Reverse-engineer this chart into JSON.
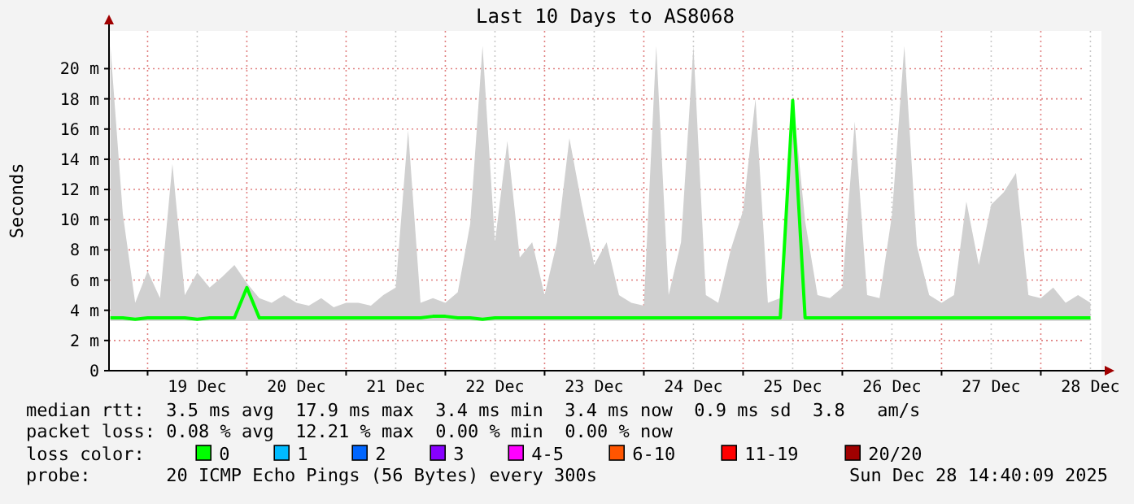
{
  "chart_data": {
    "type": "line",
    "title": "Last 10 Days to AS8068",
    "ylabel": "Seconds",
    "xlim": [
      "2025-12-18T14:40",
      "2025-12-28T14:40"
    ],
    "xticks": [
      {
        "value": "2025-12-19T00:00",
        "label": null
      },
      {
        "value": "2025-12-19T12:00",
        "label": "19 Dec"
      },
      {
        "value": "2025-12-20T00:00",
        "label": null
      },
      {
        "value": "2025-12-20T12:00",
        "label": "20 Dec"
      },
      {
        "value": "2025-12-21T00:00",
        "label": null
      },
      {
        "value": "2025-12-21T12:00",
        "label": "21 Dec"
      },
      {
        "value": "2025-12-22T00:00",
        "label": null
      },
      {
        "value": "2025-12-22T12:00",
        "label": "22 Dec"
      },
      {
        "value": "2025-12-23T00:00",
        "label": null
      },
      {
        "value": "2025-12-23T12:00",
        "label": "23 Dec"
      },
      {
        "value": "2025-12-24T00:00",
        "label": null
      },
      {
        "value": "2025-12-24T12:00",
        "label": "24 Dec"
      },
      {
        "value": "2025-12-25T00:00",
        "label": null
      },
      {
        "value": "2025-12-25T12:00",
        "label": "25 Dec"
      },
      {
        "value": "2025-12-26T00:00",
        "label": null
      },
      {
        "value": "2025-12-26T12:00",
        "label": "26 Dec"
      },
      {
        "value": "2025-12-27T00:00",
        "label": null
      },
      {
        "value": "2025-12-27T12:00",
        "label": "27 Dec"
      },
      {
        "value": "2025-12-28T00:00",
        "label": null
      },
      {
        "value": "2025-12-28T12:00",
        "label": "28 Dec"
      }
    ],
    "ylim": [
      0,
      22.5
    ],
    "yticks": [
      {
        "value": 0,
        "label": "0"
      },
      {
        "value": 2,
        "label": "2 m"
      },
      {
        "value": 4,
        "label": "4 m"
      },
      {
        "value": 6,
        "label": "6 m"
      },
      {
        "value": 8,
        "label": "8 m"
      },
      {
        "value": 10,
        "label": "10 m"
      },
      {
        "value": 12,
        "label": "12 m"
      },
      {
        "value": 14,
        "label": "14 m"
      },
      {
        "value": 16,
        "label": "16 m"
      },
      {
        "value": 18,
        "label": "18 m"
      },
      {
        "value": 20,
        "label": "20 m"
      }
    ],
    "grid": true,
    "legend": "bottom",
    "legend_title": "loss color:",
    "x": [
      "2025-12-18T15:00",
      "2025-12-18T18:00",
      "2025-12-18T21:00",
      "2025-12-19T00:00",
      "2025-12-19T03:00",
      "2025-12-19T06:00",
      "2025-12-19T09:00",
      "2025-12-19T12:00",
      "2025-12-19T15:00",
      "2025-12-19T18:00",
      "2025-12-19T21:00",
      "2025-12-20T00:00",
      "2025-12-20T03:00",
      "2025-12-20T06:00",
      "2025-12-20T09:00",
      "2025-12-20T12:00",
      "2025-12-20T15:00",
      "2025-12-20T18:00",
      "2025-12-20T21:00",
      "2025-12-21T00:00",
      "2025-12-21T03:00",
      "2025-12-21T06:00",
      "2025-12-21T09:00",
      "2025-12-21T12:00",
      "2025-12-21T15:00",
      "2025-12-21T18:00",
      "2025-12-21T21:00",
      "2025-12-22T00:00",
      "2025-12-22T03:00",
      "2025-12-22T06:00",
      "2025-12-22T09:00",
      "2025-12-22T12:00",
      "2025-12-22T15:00",
      "2025-12-22T18:00",
      "2025-12-22T21:00",
      "2025-12-23T00:00",
      "2025-12-23T03:00",
      "2025-12-23T06:00",
      "2025-12-23T09:00",
      "2025-12-23T12:00",
      "2025-12-23T15:00",
      "2025-12-23T18:00",
      "2025-12-23T21:00",
      "2025-12-24T00:00",
      "2025-12-24T03:00",
      "2025-12-24T06:00",
      "2025-12-24T09:00",
      "2025-12-24T12:00",
      "2025-12-24T15:00",
      "2025-12-24T18:00",
      "2025-12-24T21:00",
      "2025-12-25T00:00",
      "2025-12-25T03:00",
      "2025-12-25T06:00",
      "2025-12-25T09:00",
      "2025-12-25T12:00",
      "2025-12-25T15:00",
      "2025-12-25T18:00",
      "2025-12-25T21:00",
      "2025-12-26T00:00",
      "2025-12-26T03:00",
      "2025-12-26T06:00",
      "2025-12-26T09:00",
      "2025-12-26T12:00",
      "2025-12-26T15:00",
      "2025-12-26T18:00",
      "2025-12-26T21:00",
      "2025-12-27T00:00",
      "2025-12-27T03:00",
      "2025-12-27T06:00",
      "2025-12-27T09:00",
      "2025-12-27T12:00",
      "2025-12-27T15:00",
      "2025-12-27T18:00",
      "2025-12-27T21:00",
      "2025-12-28T00:00",
      "2025-12-28T03:00",
      "2025-12-28T06:00",
      "2025-12-28T09:00",
      "2025-12-28T12:00"
    ],
    "series": [
      {
        "color": "#d0d0d0",
        "values": [
          null,
          null,
          null,
          null,
          null,
          null,
          null,
          null,
          null,
          null,
          null,
          null,
          null,
          null,
          null,
          null,
          null,
          null,
          null,
          null,
          null,
          null,
          null,
          null,
          null,
          null,
          null,
          null,
          null,
          null,
          null,
          null,
          null,
          null,
          null,
          null,
          null,
          null,
          null,
          null,
          null,
          null,
          null,
          null,
          null,
          null,
          null,
          null,
          null,
          null,
          null,
          null,
          null,
          null,
          null,
          null,
          null,
          null,
          null,
          null,
          null,
          null,
          null,
          null,
          null,
          null,
          null,
          null,
          null,
          null,
          null,
          null,
          null,
          null,
          null,
          null,
          null,
          null,
          null,
          null
        ],
        "lower": [
          3.3,
          3.3,
          3.3,
          3.3,
          3.3,
          3.3,
          3.3,
          3.3,
          3.3,
          3.3,
          3.3,
          3.3,
          3.3,
          3.3,
          3.3,
          3.3,
          3.3,
          3.3,
          3.3,
          3.3,
          3.3,
          3.3,
          3.3,
          3.3,
          3.3,
          3.3,
          3.3,
          3.3,
          3.3,
          3.3,
          3.3,
          3.3,
          3.3,
          3.3,
          3.3,
          3.3,
          3.3,
          3.3,
          3.3,
          3.3,
          3.3,
          3.3,
          3.3,
          3.3,
          3.3,
          3.3,
          3.3,
          3.3,
          3.3,
          3.3,
          3.3,
          3.3,
          3.3,
          3.3,
          3.3,
          3.3,
          3.3,
          3.3,
          3.3,
          3.3,
          3.3,
          3.3,
          3.3,
          3.3,
          3.3,
          3.3,
          3.3,
          3.3,
          3.3,
          3.3,
          3.3,
          3.3,
          3.3,
          3.3,
          3.3,
          3.3,
          3.3,
          3.3,
          3.3,
          3.3
        ],
        "upper": [
          21.5,
          10.4,
          4.5,
          6.6,
          4.8,
          13.7,
          5,
          6.5,
          5.5,
          6.2,
          7,
          5.8,
          4.8,
          4.5,
          5,
          4.5,
          4.3,
          4.8,
          4.2,
          4.5,
          4.5,
          4.3,
          5,
          5.5,
          15.9,
          4.5,
          4.8,
          4.5,
          5.2,
          9.7,
          21.5,
          8.5,
          15.2,
          7.5,
          8.5,
          5,
          8.5,
          15.4,
          11,
          7,
          8.5,
          5,
          4.5,
          4.3,
          21.5,
          5,
          8.5,
          21.5,
          5,
          4.5,
          8,
          10.6,
          18,
          4.5,
          4.8,
          18.2,
          9.9,
          5,
          4.8,
          5.5,
          16.5,
          5,
          4.8,
          10.3,
          21.5,
          8.3,
          5,
          4.5,
          5,
          11.2,
          7,
          11,
          11.8,
          13.1,
          5,
          4.8,
          5.5,
          4.5,
          5,
          4.5
        ]
      },
      {
        "name": "0",
        "color": "#00ff00",
        "values": [
          3.5,
          3.5,
          3.4,
          3.5,
          3.5,
          3.5,
          3.5,
          3.4,
          3.5,
          3.5,
          3.5,
          5.5,
          3.5,
          3.5,
          3.5,
          3.5,
          3.5,
          3.5,
          3.5,
          3.5,
          3.5,
          3.5,
          3.5,
          3.5,
          3.5,
          3.5,
          3.6,
          3.6,
          3.5,
          3.5,
          3.4,
          3.5,
          3.5,
          3.5,
          3.5,
          3.5,
          3.5,
          3.5,
          3.5,
          3.5,
          3.5,
          3.5,
          3.5,
          3.5,
          3.5,
          3.5,
          3.5,
          3.5,
          3.5,
          3.5,
          3.5,
          3.5,
          3.5,
          3.5,
          3.5,
          17.9,
          3.5,
          3.5,
          3.5,
          3.5,
          3.5,
          3.5,
          3.5,
          3.5,
          3.5,
          3.5,
          3.5,
          3.5,
          3.5,
          3.5,
          3.5,
          3.5,
          3.5,
          3.5,
          3.5,
          3.5,
          3.5,
          3.5,
          3.5,
          3.5
        ]
      },
      {
        "name": "1",
        "color": "#00bbff",
        "values": [
          null,
          null,
          null,
          null,
          null,
          null,
          null,
          null,
          null,
          null,
          null,
          null,
          null,
          null,
          null,
          null,
          null,
          null,
          null,
          null,
          null,
          null,
          null,
          null,
          null,
          null,
          null,
          null,
          null,
          null,
          null,
          null,
          null,
          null,
          null,
          null,
          null,
          null,
          null,
          null,
          null,
          null,
          null,
          null,
          null,
          null,
          null,
          null,
          null,
          null,
          null,
          null,
          null,
          null,
          null,
          null,
          null,
          null,
          null,
          null,
          null,
          null,
          null,
          null,
          null,
          null,
          null,
          null,
          null,
          null,
          null,
          null,
          null,
          null,
          null,
          null,
          null,
          null,
          null,
          null
        ]
      },
      {
        "name": "2",
        "color": "#0066ff",
        "values": [
          null,
          null,
          null,
          null,
          null,
          null,
          null,
          null,
          null,
          null,
          null,
          null,
          null,
          null,
          null,
          null,
          null,
          null,
          null,
          null,
          null,
          null,
          null,
          null,
          null,
          null,
          null,
          null,
          null,
          null,
          null,
          null,
          null,
          null,
          null,
          null,
          null,
          null,
          null,
          null,
          null,
          null,
          null,
          null,
          null,
          null,
          null,
          null,
          null,
          null,
          null,
          null,
          null,
          null,
          null,
          null,
          null,
          null,
          null,
          null,
          null,
          null,
          null,
          null,
          null,
          null,
          null,
          null,
          null,
          null,
          null,
          null,
          null,
          null,
          null,
          null,
          null,
          null,
          null,
          null
        ]
      },
      {
        "name": "3",
        "color": "#8800ff",
        "values": [
          null,
          null,
          null,
          null,
          null,
          null,
          null,
          null,
          null,
          null,
          null,
          null,
          null,
          null,
          null,
          null,
          null,
          null,
          null,
          null,
          null,
          null,
          null,
          null,
          null,
          null,
          null,
          null,
          null,
          null,
          null,
          null,
          null,
          null,
          null,
          null,
          null,
          null,
          null,
          null,
          null,
          null,
          null,
          null,
          null,
          null,
          null,
          null,
          null,
          null,
          null,
          null,
          null,
          null,
          null,
          null,
          null,
          null,
          null,
          null,
          null,
          null,
          null,
          null,
          null,
          null,
          null,
          null,
          null,
          null,
          null,
          null,
          null,
          null,
          null,
          null,
          null,
          null,
          null,
          null
        ]
      },
      {
        "name": "4-5",
        "color": "#ff00ff",
        "values": [
          null,
          null,
          null,
          null,
          null,
          null,
          null,
          null,
          null,
          null,
          null,
          null,
          null,
          null,
          null,
          null,
          null,
          null,
          null,
          null,
          null,
          null,
          null,
          null,
          null,
          null,
          null,
          null,
          null,
          null,
          null,
          null,
          null,
          null,
          null,
          null,
          null,
          null,
          null,
          null,
          null,
          null,
          null,
          null,
          null,
          null,
          null,
          null,
          null,
          null,
          null,
          null,
          null,
          null,
          null,
          null,
          null,
          null,
          null,
          null,
          null,
          null,
          null,
          null,
          null,
          null,
          null,
          null,
          null,
          null,
          null,
          null,
          null,
          null,
          null,
          null,
          null,
          null,
          null,
          null
        ]
      },
      {
        "name": "6-10",
        "color": "#ff5500",
        "values": [
          null,
          null,
          null,
          null,
          null,
          null,
          null,
          null,
          null,
          null,
          null,
          null,
          null,
          null,
          null,
          null,
          null,
          null,
          null,
          null,
          null,
          null,
          null,
          null,
          null,
          null,
          null,
          null,
          null,
          null,
          null,
          null,
          null,
          null,
          null,
          null,
          null,
          null,
          null,
          null,
          null,
          null,
          null,
          null,
          null,
          null,
          null,
          null,
          null,
          null,
          null,
          null,
          null,
          null,
          null,
          null,
          null,
          null,
          null,
          null,
          null,
          null,
          null,
          null,
          null,
          null,
          null,
          null,
          null,
          null,
          null,
          null,
          null,
          null,
          null,
          null,
          null,
          null,
          null,
          null
        ]
      },
      {
        "name": "11-19",
        "color": "#ff0000",
        "values": [
          null,
          null,
          null,
          null,
          null,
          null,
          null,
          null,
          null,
          null,
          null,
          null,
          null,
          null,
          null,
          null,
          null,
          null,
          null,
          null,
          null,
          null,
          null,
          null,
          null,
          null,
          null,
          null,
          null,
          null,
          null,
          null,
          null,
          null,
          null,
          null,
          null,
          null,
          null,
          null,
          null,
          null,
          null,
          null,
          null,
          null,
          null,
          null,
          null,
          null,
          null,
          null,
          null,
          null,
          null,
          null,
          null,
          null,
          null,
          null,
          null,
          null,
          null,
          null,
          null,
          null,
          null,
          null,
          null,
          null,
          null,
          null,
          null,
          null,
          null,
          null,
          null,
          null,
          null,
          null
        ]
      },
      {
        "name": "20/20",
        "color": "#a00000",
        "values": [
          null,
          null,
          null,
          null,
          null,
          null,
          null,
          null,
          null,
          null,
          null,
          null,
          null,
          null,
          null,
          null,
          null,
          null,
          null,
          null,
          null,
          null,
          null,
          null,
          null,
          null,
          null,
          null,
          null,
          null,
          null,
          null,
          null,
          null,
          null,
          null,
          null,
          null,
          null,
          null,
          null,
          null,
          null,
          null,
          null,
          null,
          null,
          null,
          null,
          null,
          null,
          null,
          null,
          null,
          null,
          null,
          null,
          null,
          null,
          null,
          null,
          null,
          null,
          null,
          null,
          null,
          null,
          null,
          null,
          null,
          null,
          null,
          null,
          null,
          null,
          null,
          null,
          null,
          null,
          null
        ]
      }
    ],
    "annotations": [
      "median rtt:  3.5 ms avg  17.9 ms max  3.4 ms min  3.4 ms now  0.9 ms sd  3.8   am/s",
      "packet loss: 0.08 % avg  12.21 % max  0.00 % min  0.00 % now",
      "probe:       20 ICMP Echo Pings (56 Bytes) every 300s",
      "Sun Dec 28 14:40:09 2025"
    ]
  }
}
